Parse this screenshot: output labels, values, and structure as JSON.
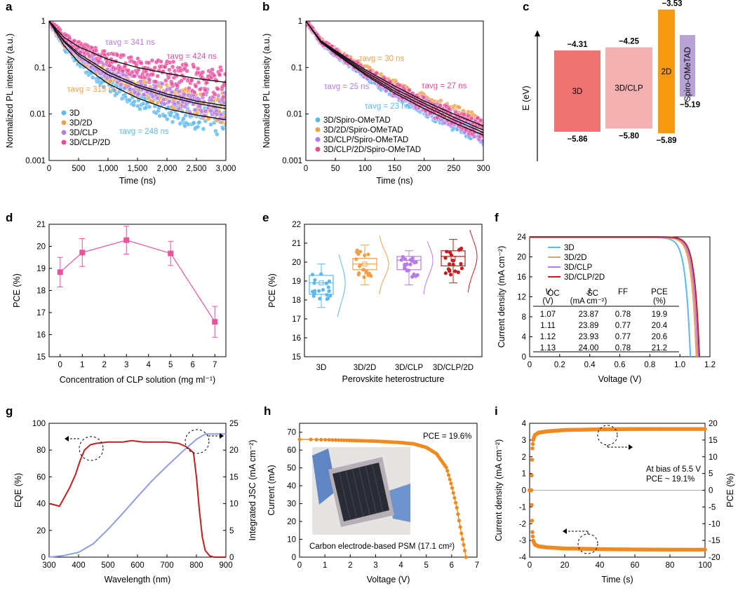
{
  "chart_data": [
    {
      "panel": "a",
      "type": "scatter",
      "xlabel": "Time (ns)",
      "ylabel": "Normalized PL intensity (a.u.)",
      "xlim": [
        0,
        3000
      ],
      "ylim": [
        0.001,
        1
      ],
      "yscale": "log",
      "xticks": [
        "0",
        "500",
        "1,000",
        "1,500",
        "2,000",
        "2,500",
        "3,000"
      ],
      "yticks": [
        "0.001",
        "0.01",
        "0.1",
        "1"
      ],
      "legend_position": "bottom-left",
      "series": [
        {
          "name": "3D",
          "color": "#5bb8f0",
          "tau_ns": 248,
          "annotation": "τavg = 248 ns",
          "x": [
            0,
            250,
            500,
            1000,
            1500,
            2000,
            2500,
            3000
          ],
          "y": [
            1,
            0.3,
            0.13,
            0.045,
            0.022,
            0.013,
            0.0095,
            0.0075
          ]
        },
        {
          "name": "3D/2D",
          "color": "#f0a04b",
          "tau_ns": 315,
          "annotation": "τavg = 315 ns",
          "x": [
            0,
            250,
            500,
            1000,
            1500,
            2000,
            2500,
            3000
          ],
          "y": [
            1,
            0.36,
            0.18,
            0.07,
            0.038,
            0.024,
            0.017,
            0.013
          ]
        },
        {
          "name": "3D/CLP",
          "color": "#b77be8",
          "tau_ns": 341,
          "annotation": "τavg = 341 ns",
          "x": [
            0,
            250,
            500,
            1000,
            1500,
            2000,
            2500,
            3000
          ],
          "y": [
            1,
            0.38,
            0.2,
            0.08,
            0.042,
            0.027,
            0.019,
            0.015
          ]
        },
        {
          "name": "3D/CLP/2D",
          "color": "#ea4c9a",
          "tau_ns": 424,
          "annotation": "τavg = 424 ns",
          "x": [
            0,
            250,
            500,
            1000,
            1500,
            2000,
            2500,
            3000
          ],
          "y": [
            1,
            0.45,
            0.28,
            0.15,
            0.1,
            0.075,
            0.058,
            0.048
          ]
        }
      ]
    },
    {
      "panel": "b",
      "type": "scatter",
      "xlabel": "Time (ns)",
      "ylabel": "Normalized PL intensity (a.u.)",
      "xlim": [
        0,
        300
      ],
      "ylim": [
        0.001,
        1
      ],
      "yscale": "log",
      "xticks": [
        "0",
        "50",
        "100",
        "150",
        "200",
        "250",
        "300"
      ],
      "yticks": [
        "0.001",
        "0.01",
        "0.1",
        "1"
      ],
      "legend_position": "bottom-left",
      "series": [
        {
          "name": "3D/Spiro-OMeTAD",
          "color": "#5bb8f0",
          "tau_ns": 23,
          "annotation": "τavg = 23 ns",
          "x": [
            0,
            25,
            50,
            100,
            150,
            200,
            250,
            300
          ],
          "y": [
            1,
            0.35,
            0.2,
            0.07,
            0.028,
            0.013,
            0.0065,
            0.0035
          ]
        },
        {
          "name": "3D/2D/Spiro-OMeTAD",
          "color": "#f0a04b",
          "tau_ns": 30,
          "annotation": "τavg = 30 ns",
          "x": [
            0,
            25,
            50,
            100,
            150,
            200,
            250,
            300
          ],
          "y": [
            1,
            0.38,
            0.23,
            0.09,
            0.04,
            0.019,
            0.01,
            0.0055
          ]
        },
        {
          "name": "3D/CLP/Spiro-OMeTAD",
          "color": "#b77be8",
          "tau_ns": 25,
          "annotation": "τavg = 25 ns",
          "x": [
            0,
            25,
            50,
            100,
            150,
            200,
            250,
            300
          ],
          "y": [
            1,
            0.36,
            0.21,
            0.075,
            0.031,
            0.015,
            0.0075,
            0.004
          ]
        },
        {
          "name": "3D/CLP/2D/Spiro-OMeTAD",
          "color": "#ea4c9a",
          "tau_ns": 27,
          "annotation": "τavg = 27 ns",
          "x": [
            0,
            25,
            50,
            100,
            150,
            200,
            250,
            300
          ],
          "y": [
            1,
            0.37,
            0.22,
            0.082,
            0.035,
            0.017,
            0.0085,
            0.0045
          ]
        }
      ]
    },
    {
      "panel": "c",
      "type": "diagram",
      "ylabel": "E (eV)",
      "levels": [
        {
          "name": "3D",
          "top": -4.31,
          "bottom": -5.86,
          "top_label": "−4.31",
          "bottom_label": "−5.86",
          "color": "#ef7373"
        },
        {
          "name": "3D/CLP",
          "top": -4.25,
          "bottom": -5.8,
          "top_label": "−4.25",
          "bottom_label": "−5.80",
          "color": "#f4b1b1"
        },
        {
          "name": "2D",
          "top": -3.53,
          "bottom": -5.89,
          "top_label": "−3.53",
          "bottom_label": "−5.89",
          "color": "#f59a0f"
        },
        {
          "name": "Spiro-OMeTAD",
          "top": -5.0,
          "bottom": -5.19,
          "top_label": "",
          "bottom_label": "−5.19",
          "color": "#b8a3d6"
        }
      ]
    },
    {
      "panel": "d",
      "type": "line",
      "xlabel": "Concentration of CLP solution (mg ml⁻¹)",
      "ylabel": "PCE (%)",
      "xlim": [
        -0.5,
        7.5
      ],
      "ylim": [
        15,
        21
      ],
      "xticks": [
        "0",
        "1",
        "2",
        "3",
        "4",
        "5",
        "6",
        "7"
      ],
      "yticks": [
        "15",
        "16",
        "17",
        "18",
        "19",
        "20",
        "21"
      ],
      "color": "#e8549c",
      "x": [
        0,
        1,
        3,
        5,
        7
      ],
      "y": [
        18.83,
        19.72,
        20.28,
        19.68,
        16.58
      ],
      "err": [
        0.67,
        0.63,
        0.63,
        0.55,
        0.7
      ]
    },
    {
      "panel": "e",
      "type": "box",
      "xlabel": "Perovskite heterostructure",
      "ylabel": "PCE (%)",
      "ylim": [
        15,
        22
      ],
      "yticks": [
        "15",
        "16",
        "17",
        "18",
        "19",
        "20",
        "21",
        "22"
      ],
      "categories": [
        "3D",
        "3D/2D",
        "3D/CLP",
        "3D/CLP/2D"
      ],
      "colors": [
        "#5bb8f0",
        "#f0a04b",
        "#b77be8",
        "#c41e1e"
      ],
      "boxes": [
        {
          "q1": 18.3,
          "median": 18.9,
          "q3": 19.3,
          "mean": 18.9,
          "min": 17.6,
          "max": 19.9
        },
        {
          "q1": 19.6,
          "median": 19.9,
          "q3": 20.2,
          "mean": 19.9,
          "min": 18.8,
          "max": 20.9
        },
        {
          "q1": 19.6,
          "median": 20.1,
          "q3": 20.3,
          "mean": 20.0,
          "min": 18.8,
          "max": 20.6
        },
        {
          "q1": 19.8,
          "median": 20.3,
          "q3": 20.6,
          "mean": 20.2,
          "min": 18.9,
          "max": 21.2
        }
      ]
    },
    {
      "panel": "f",
      "type": "line",
      "xlabel": "Voltage (V)",
      "ylabel": "Current density (mA cm⁻²)",
      "xlim": [
        0,
        1.2
      ],
      "ylim": [
        0,
        24
      ],
      "xticks": [
        "0",
        "0.2",
        "0.4",
        "0.6",
        "0.8",
        "1.0",
        "1.2"
      ],
      "yticks": [
        "0",
        "4",
        "8",
        "12",
        "16",
        "20",
        "24"
      ],
      "legend_position": "top-right",
      "series": [
        {
          "name": "3D",
          "color": "#5bb8f0",
          "voc": 1.07,
          "jsc": 23.87
        },
        {
          "name": "3D/2D",
          "color": "#f0a04b",
          "voc": 1.11,
          "jsc": 23.89
        },
        {
          "name": "3D/CLP",
          "color": "#b77be8",
          "voc": 1.12,
          "jsc": 23.93
        },
        {
          "name": "3D/CLP/2D",
          "color": "#c41e1e",
          "voc": 1.13,
          "jsc": 24.0
        }
      ],
      "table": {
        "headers": [
          [
            "V",
            "OC",
            "(V)"
          ],
          [
            "J",
            "SC",
            "(mA cm⁻²)"
          ],
          [
            "FF",
            "",
            ""
          ],
          [
            "PCE",
            "",
            "(%)"
          ]
        ],
        "rows": [
          {
            "cells": [
              "1.07",
              "23.87",
              "0.78",
              "19.9"
            ],
            "color": "#5bb8f0"
          },
          {
            "cells": [
              "1.11",
              "23.89",
              "0.77",
              "20.4"
            ],
            "color": "#e0a010"
          },
          {
            "cells": [
              "1.12",
              "23.93",
              "0.77",
              "20.6"
            ],
            "color": "#b77be8"
          },
          {
            "cells": [
              "1.13",
              "24.00",
              "0.78",
              "21.2"
            ],
            "color": "#c41e1e"
          }
        ]
      }
    },
    {
      "panel": "g",
      "type": "line",
      "xlabel": "Wavelength (nm)",
      "ylabel": "EQE (%)",
      "ylabel_right": "Integrated JSC (mA cm⁻²)",
      "xlim": [
        300,
        900
      ],
      "ylim": [
        0,
        100
      ],
      "ylim_right": [
        0,
        25
      ],
      "xticks": [
        "300",
        "400",
        "500",
        "600",
        "700",
        "800",
        "900"
      ],
      "yticks": [
        "0",
        "20",
        "40",
        "60",
        "80",
        "100"
      ],
      "yticks_right": [
        "0",
        "5",
        "10",
        "15",
        "20",
        "25"
      ],
      "series": [
        {
          "name": "EQE",
          "color": "#c41e1e",
          "axis": "left",
          "x": [
            300,
            320,
            335,
            350,
            370,
            390,
            405,
            420,
            440,
            460,
            500,
            550,
            580,
            620,
            660,
            700,
            740,
            770,
            790,
            800,
            810,
            820,
            830,
            845,
            860,
            900
          ],
          "y": [
            40,
            39,
            38,
            44,
            52,
            62,
            72,
            80,
            84,
            85,
            86,
            86,
            87,
            86,
            86,
            86,
            85,
            82,
            78,
            60,
            35,
            15,
            5,
            1,
            0,
            0
          ]
        },
        {
          "name": "Integrated JSC",
          "color": "#8c9eeb",
          "axis": "right",
          "x": [
            300,
            350,
            400,
            450,
            500,
            550,
            600,
            650,
            700,
            750,
            800,
            830,
            850,
            900
          ],
          "y": [
            0,
            0.3,
            0.9,
            2.5,
            5.2,
            8.2,
            11.3,
            14.3,
            17.0,
            19.6,
            22.0,
            23.0,
            23.0,
            23.0
          ]
        }
      ]
    },
    {
      "panel": "h",
      "type": "line",
      "xlabel": "Voltage (V)",
      "ylabel": "Current (mA)",
      "xlim": [
        0,
        7
      ],
      "ylim": [
        0,
        75
      ],
      "xticks": [
        "0",
        "1",
        "2",
        "3",
        "4",
        "5",
        "6",
        "7"
      ],
      "yticks": [
        "0",
        "10",
        "20",
        "30",
        "40",
        "50",
        "60",
        "70"
      ],
      "annotation": "PCE = 19.6%",
      "caption": "Carbon electrode-based PSM (17.1 cm²)",
      "color": "#f08a20",
      "x": [
        0,
        1,
        2,
        3,
        4,
        4.5,
        5,
        5.4,
        5.8,
        6.0,
        6.2,
        6.4,
        6.5,
        6.56
      ],
      "y": [
        66,
        65.8,
        65.4,
        65,
        64.2,
        63.5,
        61.5,
        58,
        50,
        40,
        28,
        12,
        5,
        0
      ]
    },
    {
      "panel": "i",
      "type": "line",
      "xlabel": "Time (s)",
      "ylabel": "Current density (mA cm⁻²)",
      "ylabel_right": "PCE (%)",
      "xlim": [
        0,
        100
      ],
      "ylim": [
        -4,
        4
      ],
      "ylim_right": [
        -20,
        20
      ],
      "xticks": [
        "0",
        "20",
        "40",
        "60",
        "80",
        "100"
      ],
      "yticks": [
        "-4",
        "-3",
        "-2",
        "-1",
        "0",
        "1",
        "2",
        "3",
        "4"
      ],
      "yticks_right": [
        "-20",
        "-15",
        "-10",
        "-5",
        "0",
        "5",
        "10",
        "15",
        "20"
      ],
      "annotation_lines": [
        "At bias of 5.5 V",
        "PCE ~ 19.1%"
      ],
      "color": "#f08a20",
      "series": [
        {
          "name": "PCE",
          "axis": "right",
          "x": [
            0,
            1,
            1.5,
            2,
            3,
            5,
            10,
            20,
            40,
            60,
            80,
            100
          ],
          "y": [
            0,
            0,
            12,
            15,
            16.5,
            17.2,
            17.6,
            18.0,
            18.2,
            18.3,
            18.3,
            18.3
          ]
        },
        {
          "name": "Current density",
          "axis": "left",
          "x": [
            0,
            1,
            1.5,
            2,
            3,
            5,
            10,
            20,
            40,
            60,
            80,
            100
          ],
          "y": [
            0,
            0,
            -2.4,
            -3.0,
            -3.25,
            -3.35,
            -3.42,
            -3.48,
            -3.52,
            -3.54,
            -3.55,
            -3.55
          ]
        }
      ]
    }
  ]
}
